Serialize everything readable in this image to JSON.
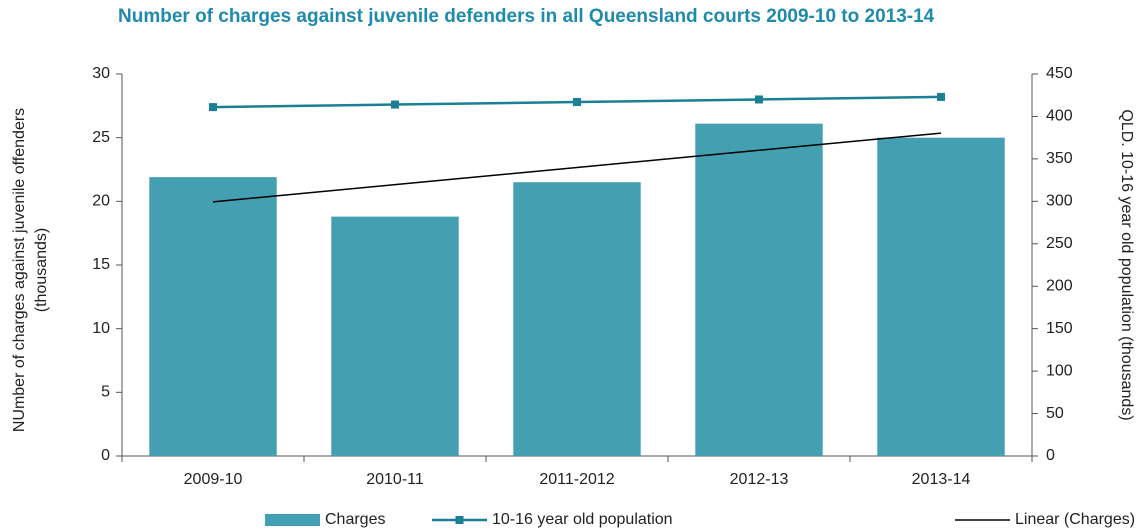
{
  "chart_data": {
    "type": "bar_line",
    "title": "Number of charges against juvenile defenders in all Queensland courts 2009-10 to 2013-14",
    "ylabel_lines": [
      "NUmber of charges against juvenile offenders",
      "(thousands)"
    ],
    "y2label": "QLD. 10-16 year old population (thousands)",
    "categories": [
      "2009-10",
      "2010-11",
      "2011-2012",
      "2012-13",
      "2013-14"
    ],
    "series": [
      {
        "name": "Charges",
        "type": "bar",
        "color": "#439fb1",
        "values": [
          21.9,
          18.8,
          21.5,
          26.1,
          25.0
        ]
      },
      {
        "name": "10-16 year old population",
        "type": "line",
        "axis": "y2",
        "color": "#1b7f95",
        "values": [
          411,
          414,
          417,
          420,
          423
        ]
      },
      {
        "name": "Linear (Charges)",
        "type": "trend",
        "color": "#000000",
        "values": [
          19.96,
          21.31,
          22.66,
          24.01,
          25.36
        ]
      }
    ],
    "ylim": [
      0,
      30
    ],
    "yticks": [
      0,
      5,
      10,
      15,
      20,
      25,
      30
    ],
    "y2lim": [
      0,
      450
    ],
    "y2ticks": [
      0,
      50,
      100,
      150,
      200,
      250,
      300,
      350,
      400,
      450
    ],
    "legend": "bottom"
  }
}
